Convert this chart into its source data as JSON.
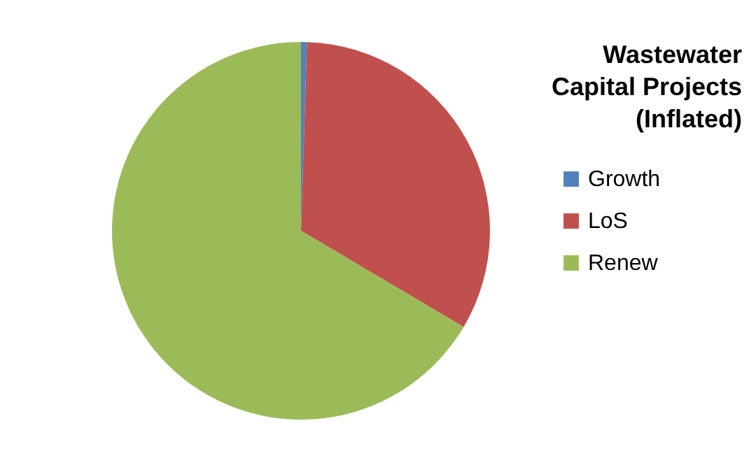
{
  "chart_data": {
    "type": "pie",
    "title": "Wastewater Capital Projects (Inflated)",
    "categories": [
      "Growth",
      "LoS",
      "Renew"
    ],
    "values": [
      0.5,
      33,
      66.5
    ],
    "colors": [
      "#4f81bd",
      "#c0504d",
      "#9bbb59"
    ],
    "legend": "right"
  }
}
